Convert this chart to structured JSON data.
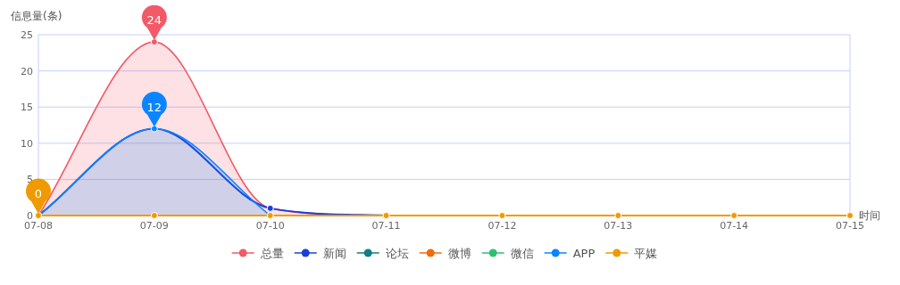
{
  "chart_data": {
    "type": "line",
    "ylabel": "信息量(条)",
    "xlabel": "时间",
    "categories": [
      "07-08",
      "07-09",
      "07-10",
      "07-11",
      "07-12",
      "07-13",
      "07-14",
      "07-15"
    ],
    "ylim": [
      0,
      25
    ],
    "yticks": [
      0,
      5,
      10,
      15,
      20,
      25
    ],
    "grid": "y",
    "legend": "bottom",
    "marker": "circle",
    "series": [
      {
        "name": "总量",
        "type": "area",
        "color": "#f25a68",
        "values": [
          0,
          24,
          1,
          0,
          null,
          null,
          null,
          null
        ],
        "value_labels": [
          null,
          "24",
          null,
          null,
          null,
          null,
          null,
          null
        ]
      },
      {
        "name": "新闻",
        "color": "#1a3fd6",
        "values": [
          0,
          12,
          1,
          0,
          null,
          null,
          null,
          null
        ]
      },
      {
        "name": "论坛",
        "color": "#0f7f86",
        "values": [
          null,
          null,
          null,
          null,
          null,
          null,
          null,
          null
        ]
      },
      {
        "name": "微博",
        "color": "#f26a0a",
        "values": [
          null,
          null,
          null,
          null,
          null,
          null,
          null,
          null
        ]
      },
      {
        "name": "微信",
        "color": "#2fbf71",
        "values": [
          null,
          null,
          null,
          null,
          null,
          null,
          null,
          null
        ]
      },
      {
        "name": "APP",
        "type": "area",
        "color": "#0a85ff",
        "values": [
          0,
          12,
          0,
          null,
          null,
          null,
          null,
          null
        ],
        "value_labels": [
          null,
          "12",
          null,
          null,
          null,
          null,
          null,
          null
        ]
      },
      {
        "name": "平媒",
        "color": "#ef9a00",
        "values": [
          0,
          0,
          0,
          0,
          0,
          0,
          0,
          0
        ],
        "value_labels": [
          "0",
          null,
          null,
          null,
          null,
          null,
          null,
          null
        ]
      }
    ]
  }
}
